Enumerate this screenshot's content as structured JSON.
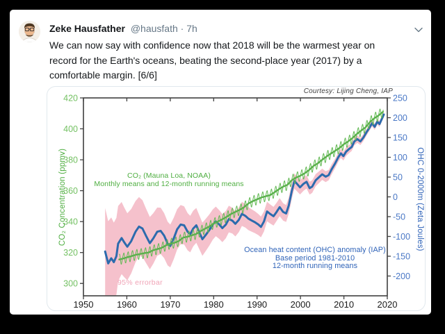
{
  "tweet": {
    "author": "Zeke Hausfather",
    "meta": "@hausfath · 7h",
    "text_lines": [
      "We can now say with confidence now that 2018 will be the warmest year on",
      "record for the Earth's oceans, beating the second-place year (2017) by a",
      "comfortable margin. [6/6]"
    ]
  },
  "chart_data": {
    "type": "line",
    "courtesy": "Courtesy: Lijing Cheng, IAP",
    "x_axis": {
      "lim": [
        1950,
        2020
      ],
      "ticks": [
        1950,
        1960,
        1970,
        1980,
        1990,
        2000,
        2010,
        2020
      ]
    },
    "left_axis": {
      "label": "CO₂ Concentration (ppmv)",
      "lim": [
        292,
        420
      ],
      "ticks": [
        300,
        320,
        340,
        360,
        380,
        400,
        420
      ],
      "color": "#74c163"
    },
    "right_axis": {
      "label": "OHC 0-2000m (Zeta Joules)",
      "lim": [
        -250,
        250
      ],
      "ticks": [
        -200,
        -150,
        -100,
        -50,
        0,
        50,
        100,
        150,
        200,
        250
      ],
      "color": "#4a78c6"
    },
    "annotations": {
      "co2_line1": "CO₂ (Mauna Loa, NOAA)",
      "co2_line2": "Monthly means and 12-month running means",
      "ohc_line1": "Ocean heat content (OHC) anomaly (IAP)",
      "ohc_line2": "Base period 1981-2010",
      "ohc_line3": "12-month running means",
      "errorbar": "95% errorbar"
    },
    "colors": {
      "co2_line": "#55ad47",
      "co2_monthly": "#63b954",
      "ohc_line": "#2c6bad",
      "error_band": "#f5c1cc",
      "frame": "#3f3f3f",
      "x_tick_text": "#1a1a1a"
    },
    "series": {
      "co2": {
        "label": "CO₂ (Mauna Loa, NOAA) monthly means and 12-month running means (ppmv)",
        "monthly_start": 1958.25,
        "monthly_end": 2019.15,
        "seasonal_cycle_ppmv": [
          0.4,
          1.3,
          2.3,
          3.1,
          3.4,
          2.3,
          0.4,
          -1.8,
          -3.2,
          -3.4,
          -2.4,
          -1.0
        ],
        "years": [
          1958,
          1959,
          1960,
          1961,
          1962,
          1963,
          1964,
          1965,
          1966,
          1967,
          1968,
          1969,
          1970,
          1971,
          1972,
          1973,
          1974,
          1975,
          1976,
          1977,
          1978,
          1979,
          1980,
          1981,
          1982,
          1983,
          1984,
          1985,
          1986,
          1987,
          1988,
          1989,
          1990,
          1991,
          1992,
          1993,
          1994,
          1995,
          1996,
          1997,
          1998,
          1999,
          2000,
          2001,
          2002,
          2003,
          2004,
          2005,
          2006,
          2007,
          2008,
          2009,
          2010,
          2011,
          2012,
          2013,
          2014,
          2015,
          2016,
          2017,
          2018,
          2019
        ],
        "annual_ppmv": [
          315.3,
          316.0,
          316.9,
          317.6,
          318.5,
          319.0,
          319.6,
          320.0,
          321.4,
          322.2,
          323.0,
          324.6,
          325.7,
          326.3,
          327.5,
          329.7,
          330.2,
          331.1,
          332.0,
          333.8,
          335.4,
          336.8,
          338.8,
          340.1,
          341.5,
          343.1,
          344.9,
          346.3,
          347.6,
          349.3,
          351.7,
          353.2,
          354.4,
          355.6,
          356.4,
          357.1,
          358.9,
          360.9,
          362.6,
          363.8,
          366.8,
          368.5,
          369.7,
          371.3,
          373.4,
          376.0,
          377.7,
          380.0,
          382.1,
          384.0,
          385.8,
          387.6,
          390.1,
          391.9,
          394.1,
          396.7,
          398.9,
          401.0,
          404.4,
          406.8,
          408.7,
          411.0
        ]
      },
      "ohc": {
        "label": "Ocean heat content (OHC) anomaly, IAP, base period 1981-2010, 12-month running means (ZJ)",
        "running_mean_zj": [
          [
            1955.0,
            -138
          ],
          [
            1955.7,
            -168
          ],
          [
            1956.4,
            -155
          ],
          [
            1957.0,
            -165
          ],
          [
            1957.6,
            -150
          ],
          [
            1958.0,
            -118
          ],
          [
            1958.8,
            -104
          ],
          [
            1959.4,
            -115
          ],
          [
            1960.1,
            -126
          ],
          [
            1961.0,
            -112
          ],
          [
            1962.0,
            -88
          ],
          [
            1962.8,
            -75
          ],
          [
            1963.6,
            -80
          ],
          [
            1964.4,
            -98
          ],
          [
            1965.3,
            -117
          ],
          [
            1966.1,
            -105
          ],
          [
            1967.0,
            -88
          ],
          [
            1967.8,
            -86
          ],
          [
            1968.6,
            -98
          ],
          [
            1969.4,
            -118
          ],
          [
            1970.0,
            -124
          ],
          [
            1970.8,
            -105
          ],
          [
            1971.6,
            -82
          ],
          [
            1972.4,
            -70
          ],
          [
            1973.2,
            -72
          ],
          [
            1974.0,
            -88
          ],
          [
            1974.6,
            -94
          ],
          [
            1975.3,
            -80
          ],
          [
            1976.0,
            -72
          ],
          [
            1976.8,
            -92
          ],
          [
            1977.4,
            -107
          ],
          [
            1978.2,
            -96
          ],
          [
            1979.0,
            -84
          ],
          [
            1979.8,
            -70
          ],
          [
            1980.5,
            -62
          ],
          [
            1981.3,
            -70
          ],
          [
            1982.0,
            -79
          ],
          [
            1982.8,
            -70
          ],
          [
            1983.5,
            -56
          ],
          [
            1984.3,
            -60
          ],
          [
            1985.0,
            -68
          ],
          [
            1985.8,
            -58
          ],
          [
            1986.5,
            -43
          ],
          [
            1987.3,
            -48
          ],
          [
            1988.0,
            -55
          ],
          [
            1988.8,
            -60
          ],
          [
            1989.5,
            -64
          ],
          [
            1990.3,
            -70
          ],
          [
            1990.9,
            -76
          ],
          [
            1991.6,
            -62
          ],
          [
            1992.3,
            -37
          ],
          [
            1993.0,
            -43
          ],
          [
            1993.8,
            -49
          ],
          [
            1994.5,
            -38
          ],
          [
            1995.2,
            -26
          ],
          [
            1996.0,
            -38
          ],
          [
            1996.7,
            -42
          ],
          [
            1997.3,
            -22
          ],
          [
            1998.0,
            15
          ],
          [
            1998.6,
            40
          ],
          [
            1999.2,
            33
          ],
          [
            1999.9,
            24
          ],
          [
            2000.7,
            33
          ],
          [
            2001.4,
            38
          ],
          [
            2002.1,
            22
          ],
          [
            2002.7,
            26
          ],
          [
            2003.5,
            42
          ],
          [
            2004.3,
            50
          ],
          [
            2005.0,
            57
          ],
          [
            2005.8,
            51
          ],
          [
            2006.5,
            55
          ],
          [
            2007.2,
            70
          ],
          [
            2008.0,
            85
          ],
          [
            2008.7,
            100
          ],
          [
            2009.3,
            110
          ],
          [
            2009.9,
            103
          ],
          [
            2010.5,
            114
          ],
          [
            2011.1,
            120
          ],
          [
            2011.8,
            126
          ],
          [
            2012.4,
            140
          ],
          [
            2013.1,
            146
          ],
          [
            2013.8,
            140
          ],
          [
            2014.5,
            150
          ],
          [
            2015.2,
            163
          ],
          [
            2015.9,
            175
          ],
          [
            2016.5,
            186
          ],
          [
            2017.1,
            177
          ],
          [
            2017.7,
            190
          ],
          [
            2018.2,
            184
          ],
          [
            2018.7,
            196
          ],
          [
            2019.2,
            208
          ]
        ],
        "error_halfwidth_zj": [
          [
            1955,
            110
          ],
          [
            1957,
            100
          ],
          [
            1960,
            85
          ],
          [
            1964,
            70
          ],
          [
            1968,
            58
          ],
          [
            1972,
            50
          ],
          [
            1976,
            44
          ],
          [
            1980,
            38
          ],
          [
            1984,
            33
          ],
          [
            1988,
            29
          ],
          [
            1992,
            25
          ],
          [
            1996,
            22
          ],
          [
            2000,
            18
          ],
          [
            2004,
            15
          ],
          [
            2008,
            12
          ],
          [
            2012,
            10
          ],
          [
            2016,
            8
          ],
          [
            2019.2,
            7
          ]
        ]
      }
    }
  }
}
